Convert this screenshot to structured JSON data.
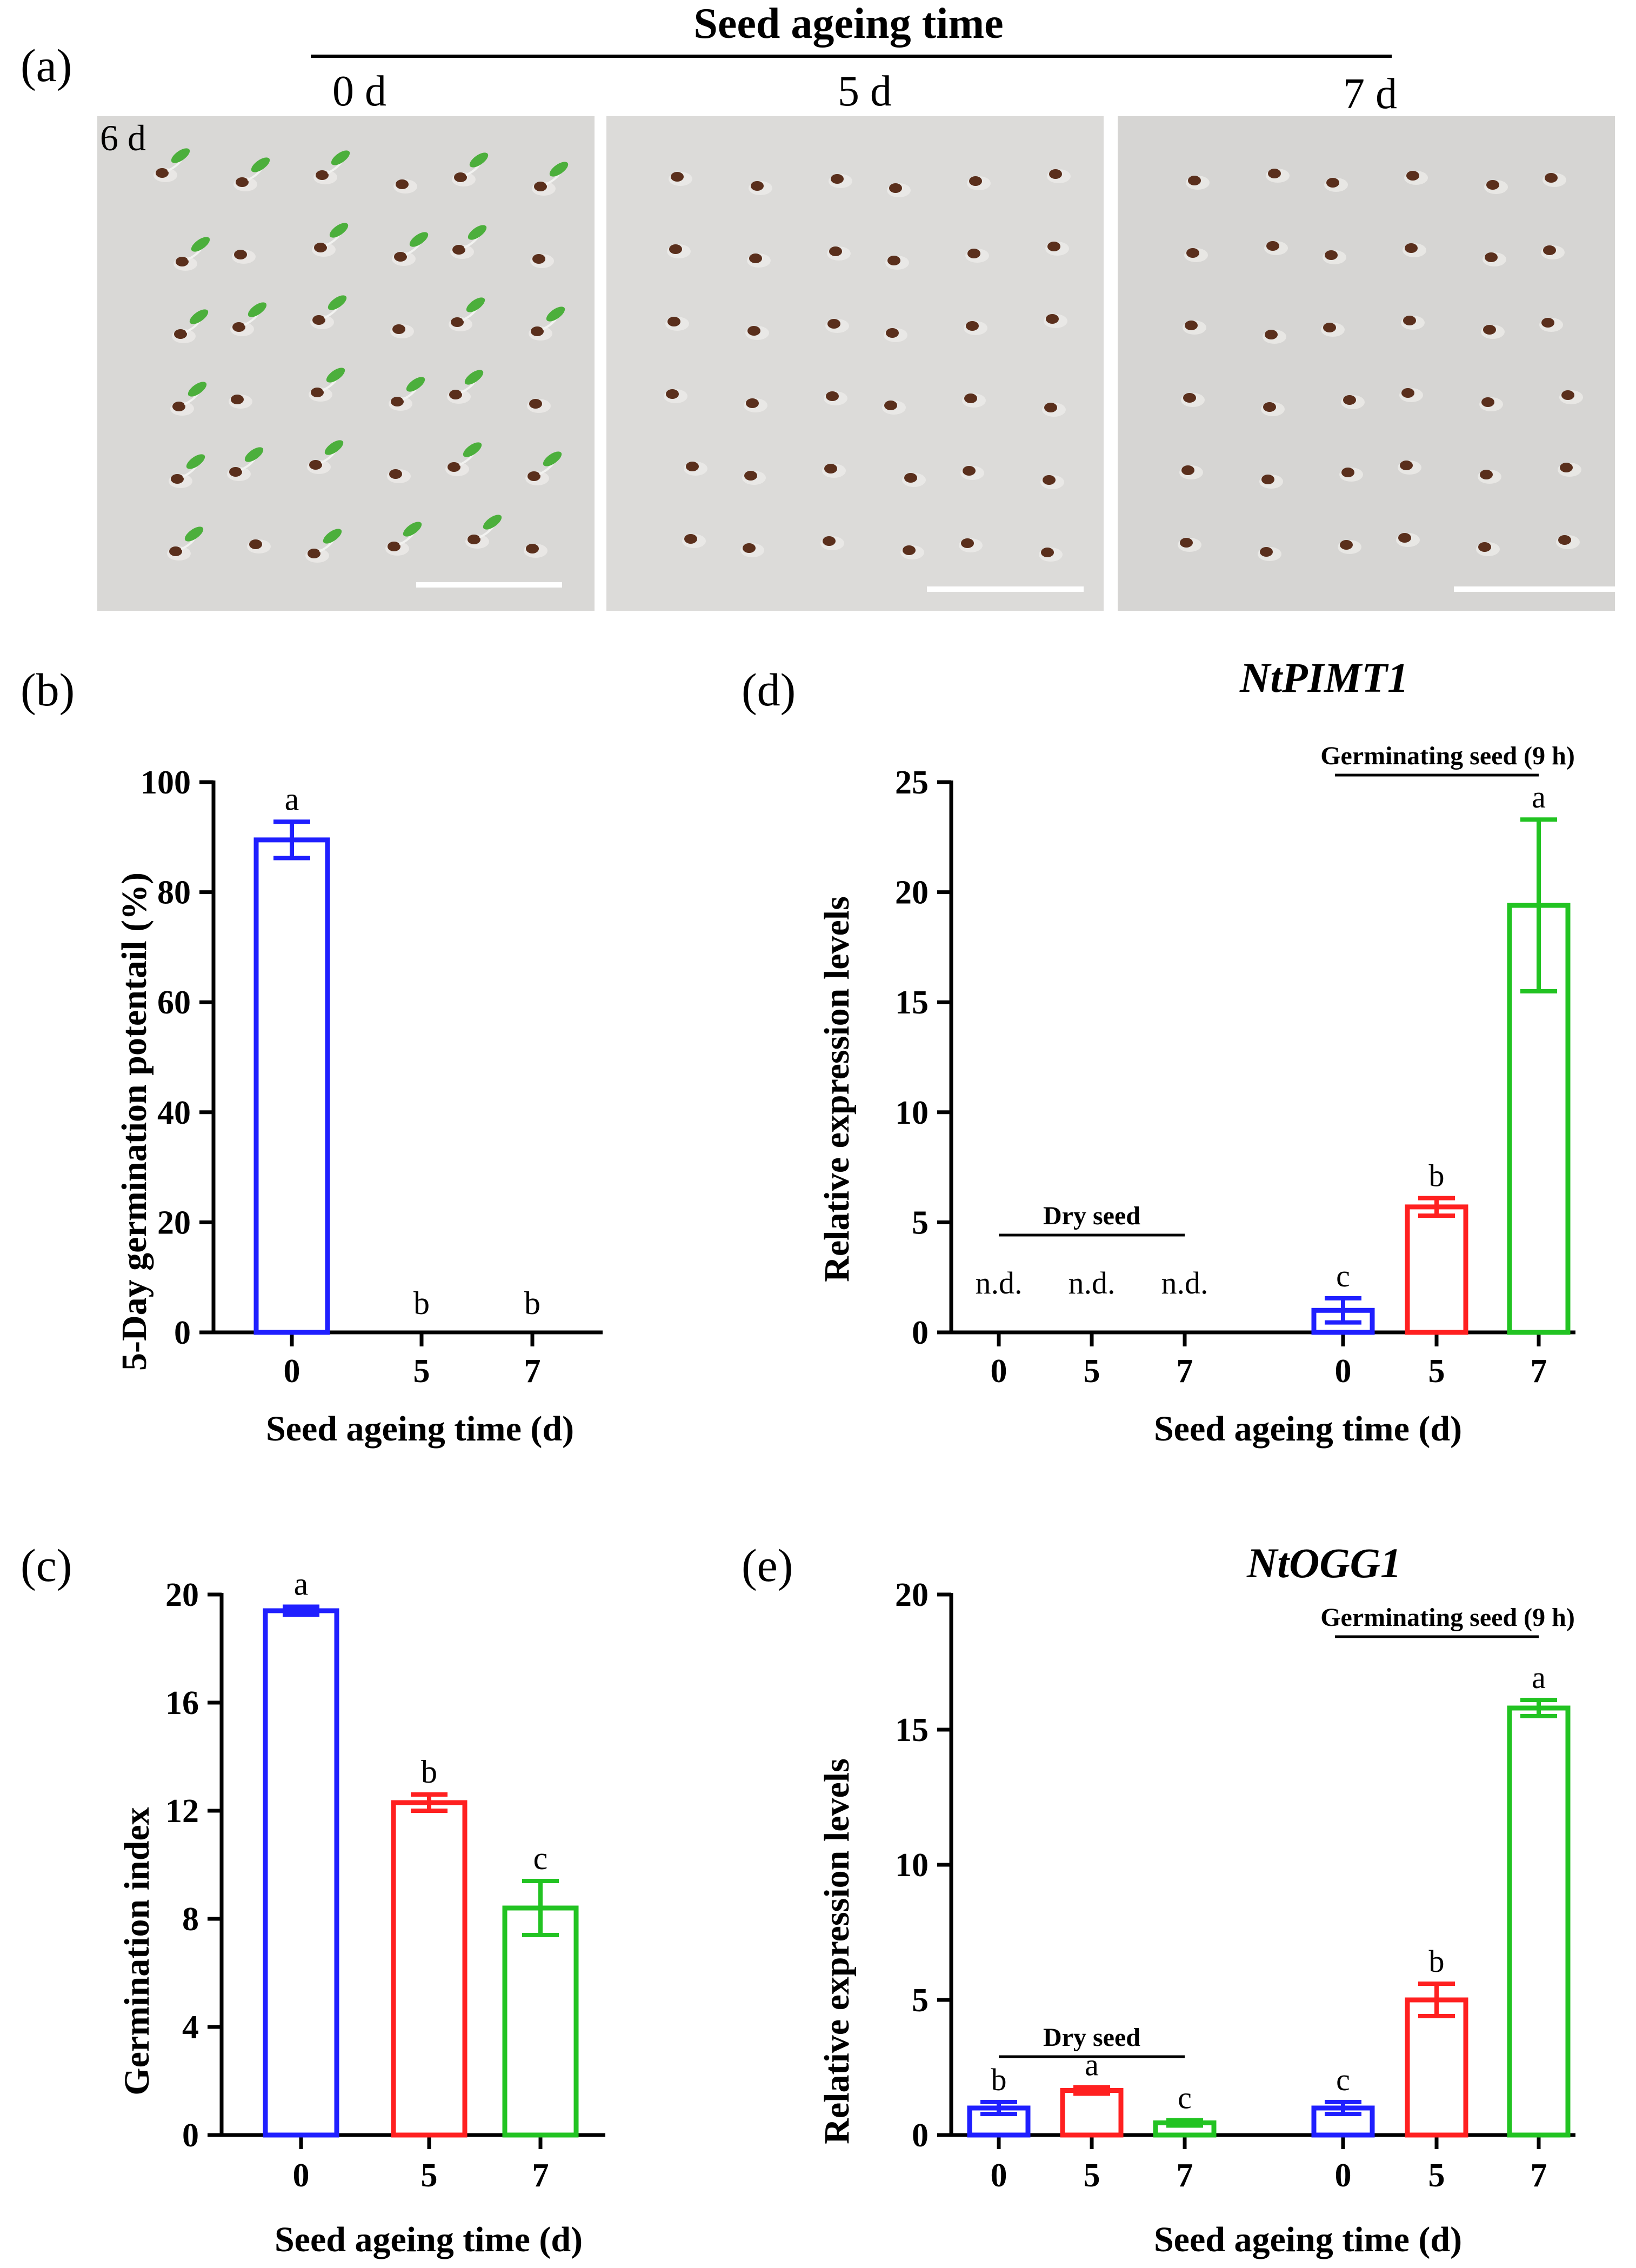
{
  "panel_a": {
    "label": "(a)",
    "title": "Seed ageing time",
    "columns": [
      "0 d",
      "5 d",
      "7 d"
    ],
    "time_label": "6 d",
    "photo_bg": "#d9d8d6",
    "seed_color": "#5a2f1c",
    "cotyledon_color": "#4caf3c"
  },
  "colors": {
    "blue": "#1f1fff",
    "red": "#ff2020",
    "green": "#22c322",
    "axis": "#000000"
  },
  "chart_data": [
    {
      "id": "b",
      "label": "(b)",
      "type": "bar",
      "title": "",
      "xlabel": "Seed ageing time (d)",
      "ylabel": "5-Day germination potentail (%)",
      "ylim": [
        0,
        100
      ],
      "yticks": [
        "0",
        "20",
        "40",
        "60",
        "80",
        "100"
      ],
      "categories": [
        "0",
        "5",
        "7"
      ],
      "values": [
        89.5,
        0,
        0
      ],
      "errors": [
        3.3,
        0,
        0
      ],
      "letters": [
        "a",
        "b",
        "b"
      ]
    },
    {
      "id": "c",
      "label": "(c)",
      "type": "bar",
      "title": "",
      "xlabel": "Seed ageing time (d)",
      "ylabel": "Germination index",
      "ylim": [
        0,
        20
      ],
      "yticks": [
        "0",
        "4",
        "8",
        "12",
        "16",
        "20"
      ],
      "categories": [
        "0",
        "5",
        "7"
      ],
      "values": [
        19.4,
        12.3,
        8.4
      ],
      "errors": [
        0.15,
        0.3,
        1.0
      ],
      "letters": [
        "a",
        "b",
        "c"
      ]
    },
    {
      "id": "d",
      "label": "(d)",
      "type": "bar",
      "title": "NtPIMT1",
      "xlabel": "Seed ageing time (d)",
      "ylabel": "Relative expression levels",
      "ylim": [
        0,
        25
      ],
      "yticks": [
        "0",
        "5",
        "10",
        "15",
        "20",
        "25"
      ],
      "group_labels": [
        "Dry seed",
        "Germinating seed (9 h)"
      ],
      "categories": [
        "0",
        "5",
        "7",
        "0",
        "5",
        "7"
      ],
      "values": [
        0,
        0,
        0,
        1.0,
        5.7,
        19.4
      ],
      "errors": [
        0,
        0,
        0,
        0.55,
        0.4,
        3.9
      ],
      "letters": [
        "n.d.",
        "n.d.",
        "n.d.",
        "c",
        "b",
        "a"
      ]
    },
    {
      "id": "e",
      "label": "(e)",
      "type": "bar",
      "title": "NtOGG1",
      "xlabel": "Seed ageing time (d)",
      "ylabel": "Relative expression levels",
      "ylim": [
        0,
        20
      ],
      "yticks": [
        "0",
        "5",
        "10",
        "15",
        "20"
      ],
      "group_labels": [
        "Dry seed",
        "Germinating seed (9 h)"
      ],
      "categories": [
        "0",
        "5",
        "7",
        "0",
        "5",
        "7"
      ],
      "values": [
        1.0,
        1.65,
        0.45,
        1.0,
        5.0,
        15.8
      ],
      "errors": [
        0.22,
        0.12,
        0.1,
        0.22,
        0.6,
        0.3
      ],
      "letters": [
        "b",
        "a",
        "c",
        "c",
        "b",
        "a"
      ]
    }
  ]
}
